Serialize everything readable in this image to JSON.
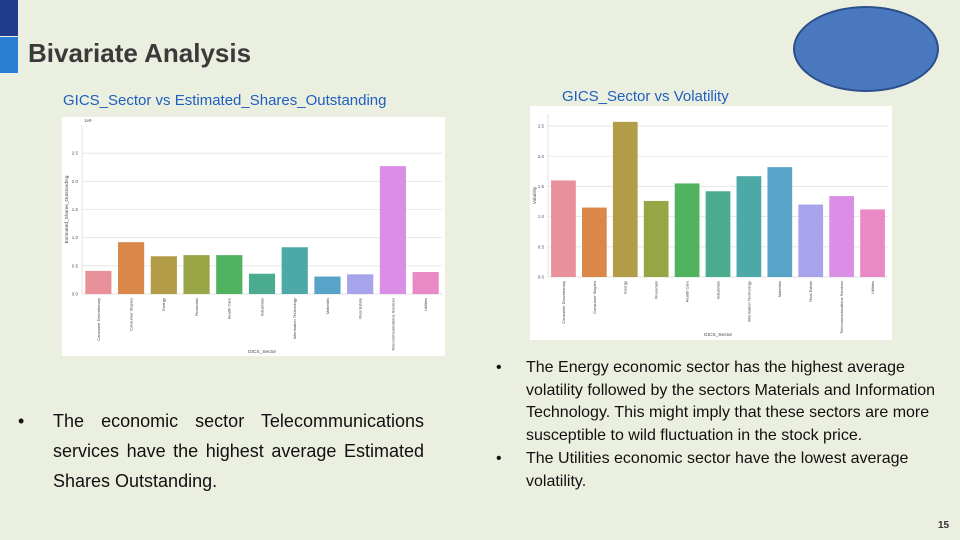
{
  "slide": {
    "title": "Bivariate Analysis",
    "page_number": "15",
    "accent_colors": [
      "#1f3b8c",
      "#2a7fd4"
    ],
    "ellipse_color": "#4a78bf"
  },
  "chart_data": [
    {
      "type": "bar",
      "caption": "GICS_Sector vs Estimated_Shares_Outstanding",
      "xlabel": "GICS_Sector",
      "ylabel": "Estimated_Shares_Outstanding",
      "scale_label": "1e9",
      "ylim": [
        0,
        3.0
      ],
      "yticks": [
        "0.0",
        "0.5",
        "1.0",
        "1.5",
        "2.0",
        "2.5"
      ],
      "ytick_values": [
        0,
        0.5,
        1.0,
        1.5,
        2.0,
        2.5
      ],
      "grid": true,
      "categories": [
        "Consumer Discretionary",
        "Consumer Staples",
        "Energy",
        "Financials",
        "Health Care",
        "Industrials",
        "Information Technology",
        "Materials",
        "Real Estate",
        "Telecommunications Services",
        "Utilities"
      ],
      "values": [
        0.41,
        0.92,
        0.67,
        0.69,
        0.69,
        0.36,
        0.83,
        0.31,
        0.35,
        2.27,
        0.39
      ],
      "colors": [
        "#e8919b",
        "#d9884a",
        "#b39c48",
        "#97a545",
        "#4fb35f",
        "#4bab8f",
        "#4da9a7",
        "#58a4c9",
        "#a8a4ec",
        "#da8ee6",
        "#e98ac6"
      ]
    },
    {
      "type": "bar",
      "caption": "GICS_Sector vs Volatility",
      "xlabel": "GICS_Sector",
      "ylabel": "Volatility",
      "ylim": [
        0,
        2.7
      ],
      "yticks": [
        "0.0",
        "0.5",
        "1.0",
        "1.5",
        "2.0",
        "2.5"
      ],
      "ytick_values": [
        0,
        0.5,
        1.0,
        1.5,
        2.0,
        2.5
      ],
      "grid": true,
      "categories": [
        "Consumer Discretionary",
        "Consumer Staples",
        "Energy",
        "Financials",
        "Health Care",
        "Industrials",
        "Information Technology",
        "Materials",
        "Real Estate",
        "Telecommunications Services",
        "Utilities"
      ],
      "values": [
        1.6,
        1.15,
        2.57,
        1.26,
        1.55,
        1.42,
        1.67,
        1.82,
        1.2,
        1.34,
        1.12
      ],
      "colors": [
        "#e8919b",
        "#d9884a",
        "#b39c48",
        "#97a545",
        "#4fb35f",
        "#4bab8f",
        "#4da9a7",
        "#58a4c9",
        "#a8a4ec",
        "#da8ee6",
        "#e98ac6"
      ]
    }
  ],
  "left_bullets": [
    "The economic sector Telecommunications services have the  highest average Estimated Shares Outstanding."
  ],
  "right_bullets": [
    "The  Energy economic sector has the highest average volatility followed by the sectors Materials and Information Technology. This might imply that these sectors are more susceptible to wild fluctuation in the stock price.",
    " The  Utilities economic sector have the lowest average volatility."
  ],
  "bullet_glyph": "•"
}
